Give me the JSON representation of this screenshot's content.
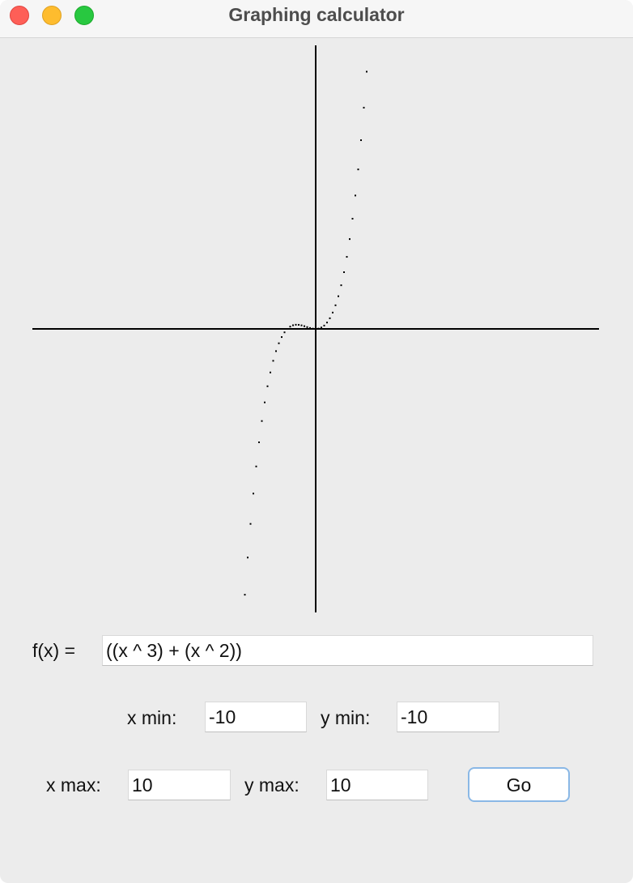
{
  "window": {
    "title": "Graphing calculator"
  },
  "function": {
    "label": "f(x) =",
    "value": "((x ^ 3) + (x ^ 2))"
  },
  "range": {
    "x_min_label": "x min:",
    "x_min_value": "-10",
    "y_min_label": "y min:",
    "y_min_value": "-10",
    "x_max_label": "x max:",
    "x_max_value": "10",
    "y_max_label": "y max:",
    "y_max_value": "10"
  },
  "go_label": "Go",
  "chart_data": {
    "type": "scatter",
    "expression": "((x ^ 3) + (x ^ 2))",
    "xlim": [
      -10,
      10
    ],
    "ylim": [
      -10,
      10
    ],
    "sample_step": 0.1,
    "x_start": -2.5,
    "x_end": 1.8,
    "point_color": "#000000",
    "axis_color": "#000000"
  },
  "colors": {
    "window_bg": "#ececec",
    "titlebar_bg": "#f6f6f6",
    "close": "#fe5f57",
    "minimize": "#febc2e",
    "maximize": "#28c840",
    "go_border": "#8ab8e6"
  }
}
